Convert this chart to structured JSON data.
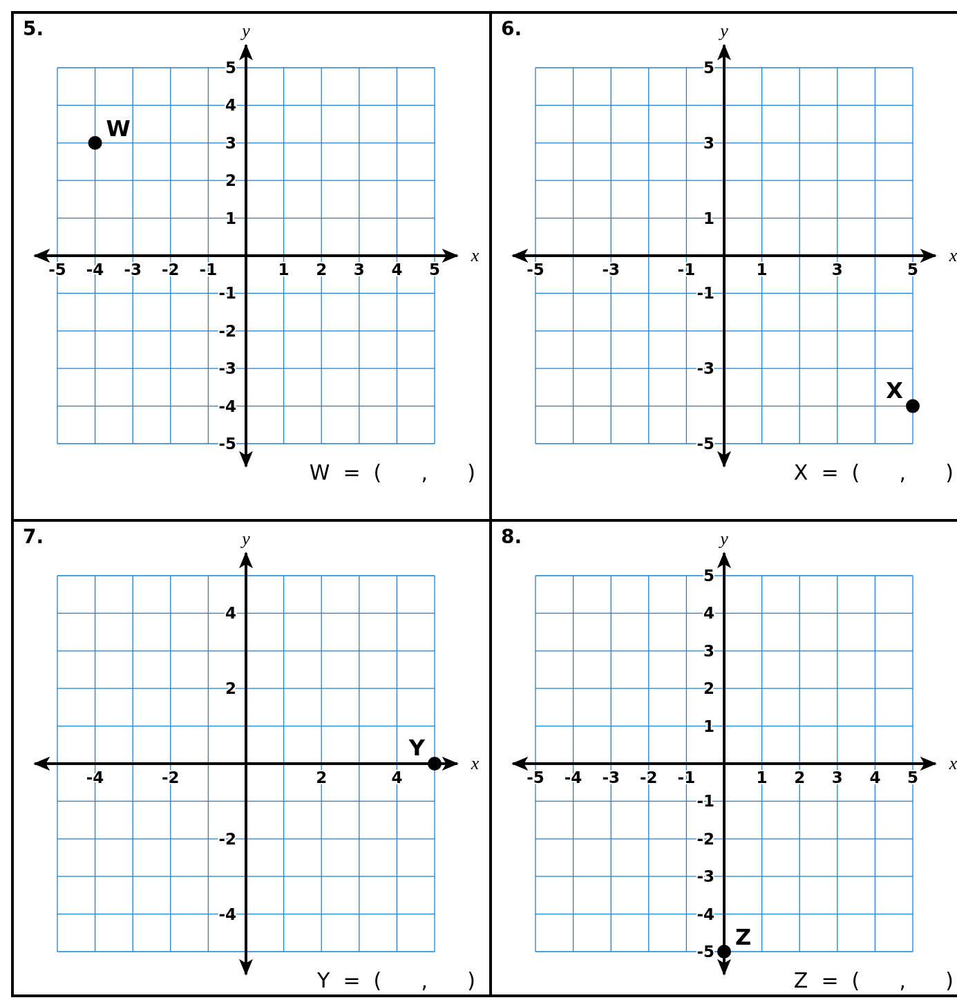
{
  "chart_data": [
    {
      "type": "scatter",
      "title": "5.",
      "xlabel": "x",
      "ylabel": "y",
      "x": [
        -4
      ],
      "values": [
        3
      ],
      "color": "#000000",
      "marker": "circle",
      "grid": true,
      "xlim": [
        -5.6,
        5.6
      ],
      "ylim": [
        -5.6,
        5.6
      ],
      "xticks": [
        -5,
        -4,
        -3,
        -2,
        -1,
        {
          "value": 0,
          "label": null
        },
        1,
        2,
        3,
        4,
        5
      ],
      "yticks": [
        -5,
        -4,
        -3,
        -2,
        -1,
        {
          "value": 0,
          "label": null
        },
        1,
        2,
        3,
        4,
        5
      ],
      "annotations": [
        {
          "text": "W",
          "x": -4,
          "y": 3
        },
        "W  =  (      ,      )"
      ]
    },
    {
      "type": "scatter",
      "title": "6.",
      "xlabel": "x",
      "ylabel": "y",
      "x": [
        5
      ],
      "values": [
        -4
      ],
      "color": "#000000",
      "marker": "circle",
      "grid": true,
      "xlim": [
        -5.6,
        5.6
      ],
      "ylim": [
        -5.6,
        5.6
      ],
      "xticks": [
        -5,
        {
          "value": -4,
          "label": null
        },
        -3,
        {
          "value": -2,
          "label": null
        },
        -1,
        {
          "value": 0,
          "label": null
        },
        1,
        {
          "value": 2,
          "label": null
        },
        3,
        {
          "value": 4,
          "label": null
        },
        5
      ],
      "yticks": [
        -5,
        {
          "value": -4,
          "label": null
        },
        -3,
        {
          "value": -2,
          "label": null
        },
        -1,
        {
          "value": 0,
          "label": null
        },
        1,
        {
          "value": 2,
          "label": null
        },
        3,
        {
          "value": 4,
          "label": null
        },
        5
      ],
      "annotations": [
        {
          "text": "X",
          "x": 5,
          "y": -4
        },
        "X  =  (      ,      )"
      ]
    },
    {
      "type": "scatter",
      "title": "7.",
      "xlabel": "x",
      "ylabel": "y",
      "x": [
        5
      ],
      "values": [
        0
      ],
      "color": "#000000",
      "marker": "circle",
      "grid": true,
      "xlim": [
        -5.6,
        5.6
      ],
      "ylim": [
        -5.6,
        5.6
      ],
      "xticks": [
        {
          "value": -5,
          "label": null
        },
        -4,
        {
          "value": -3,
          "label": null
        },
        -2,
        {
          "value": -1,
          "label": null
        },
        {
          "value": 0,
          "label": null
        },
        {
          "value": 1,
          "label": null
        },
        2,
        {
          "value": 3,
          "label": null
        },
        4,
        {
          "value": 5,
          "label": null
        }
      ],
      "yticks": [
        {
          "value": -5,
          "label": null
        },
        -4,
        {
          "value": -3,
          "label": null
        },
        -2,
        {
          "value": -1,
          "label": null
        },
        {
          "value": 0,
          "label": null
        },
        {
          "value": 1,
          "label": null
        },
        2,
        {
          "value": 3,
          "label": null
        },
        4,
        {
          "value": 5,
          "label": null
        }
      ],
      "annotations": [
        {
          "text": "Y",
          "x": 5,
          "y": 0
        },
        "Y  =  (      ,      )"
      ]
    },
    {
      "type": "scatter",
      "title": "8.",
      "xlabel": "x",
      "ylabel": "y",
      "x": [
        0
      ],
      "values": [
        -5
      ],
      "color": "#000000",
      "marker": "circle",
      "grid": true,
      "xlim": [
        -5.6,
        5.6
      ],
      "ylim": [
        -5.6,
        5.6
      ],
      "xticks": [
        -5,
        -4,
        -3,
        -2,
        -1,
        {
          "value": 0,
          "label": null
        },
        1,
        2,
        3,
        4,
        5
      ],
      "yticks": [
        -5,
        -4,
        -3,
        -2,
        -1,
        {
          "value": 0,
          "label": null
        },
        1,
        2,
        3,
        4,
        5
      ],
      "annotations": [
        {
          "text": "Z",
          "x": 0,
          "y": -5
        },
        "Z  =  (      ,      )"
      ]
    }
  ]
}
